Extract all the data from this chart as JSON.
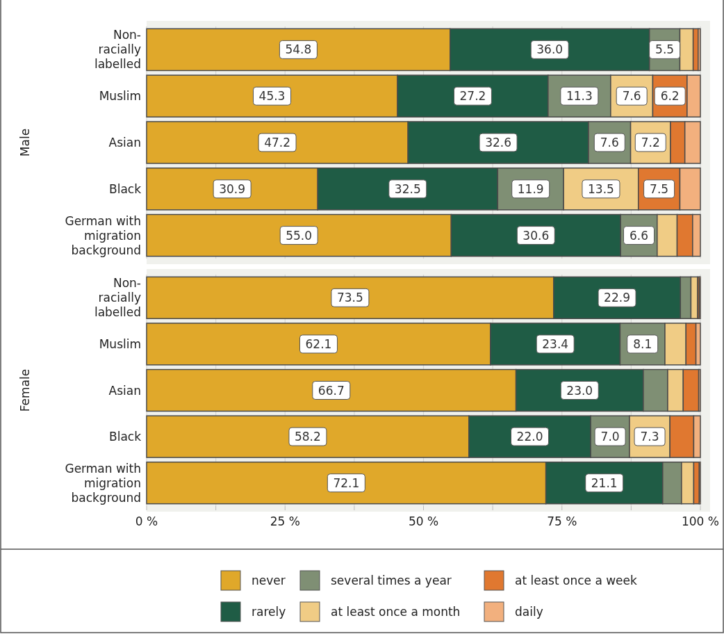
{
  "chart_data": [
    {
      "type": "bar",
      "orientation": "horizontal",
      "stacked": true,
      "ylabel": "Male",
      "categories": [
        "Non-racially labelled",
        "Muslim",
        "Asian",
        "Black",
        "German with migration background"
      ],
      "xlim": [
        0,
        100
      ],
      "xticks": [
        {
          "value": 0,
          "label": null
        },
        {
          "value": 12.5,
          "label": null
        },
        {
          "value": 25,
          "label": null
        },
        {
          "value": 37.5,
          "label": null
        },
        {
          "value": 50,
          "label": null
        },
        {
          "value": 62.5,
          "label": null
        },
        {
          "value": 75,
          "label": null
        },
        {
          "value": 87.5,
          "label": null
        },
        {
          "value": 100,
          "label": null
        }
      ],
      "tick_labels": "y",
      "grid": "x",
      "legend": "bottom",
      "series": [
        {
          "name": "never",
          "color": "#e0a82a",
          "values": [
            54.8,
            45.3,
            47.2,
            30.9,
            55.0
          ],
          "value_labels": [
            "54.8",
            "45.3",
            "47.2",
            "30.9",
            "55.0"
          ]
        },
        {
          "name": "rarely",
          "color": "#1f5c45",
          "values": [
            36.0,
            27.2,
            32.6,
            32.5,
            30.6
          ],
          "value_labels": [
            "36.0",
            "27.2",
            "32.6",
            "32.5",
            "30.6"
          ]
        },
        {
          "name": "several times a year",
          "color": "#7f8f74",
          "values": [
            5.5,
            11.3,
            7.6,
            11.9,
            6.6
          ],
          "value_labels": [
            "5.5",
            "11.3",
            "7.6",
            "11.9",
            "6.6"
          ]
        },
        {
          "name": "at least once a month",
          "color": "#f0cc85",
          "values": [
            2.4,
            7.6,
            7.2,
            13.5,
            3.6
          ],
          "value_labels": [
            null,
            "7.6",
            "7.2",
            "13.5",
            null
          ]
        },
        {
          "name": "at least once a week",
          "color": "#e07830",
          "values": [
            0.9,
            6.2,
            2.6,
            7.5,
            2.8
          ],
          "value_labels": [
            null,
            "6.2",
            null,
            "7.5",
            null
          ]
        },
        {
          "name": "daily",
          "color": "#f2b07e",
          "values": [
            0.4,
            2.4,
            2.8,
            3.7,
            1.4
          ],
          "value_labels": [
            null,
            null,
            null,
            null,
            null
          ]
        }
      ]
    },
    {
      "type": "bar",
      "orientation": "horizontal",
      "stacked": true,
      "ylabel": "Female",
      "categories": [
        "Non-racially labelled",
        "Muslim",
        "Asian",
        "Black",
        "German with migration background"
      ],
      "xlim": [
        0,
        100
      ],
      "xticks": [
        {
          "value": 0,
          "label": "0 %"
        },
        {
          "value": 12.5,
          "label": null
        },
        {
          "value": 25,
          "label": "25 %"
        },
        {
          "value": 37.5,
          "label": null
        },
        {
          "value": 50,
          "label": "50 %"
        },
        {
          "value": 62.5,
          "label": null
        },
        {
          "value": 75,
          "label": "75 %"
        },
        {
          "value": 87.5,
          "label": null
        },
        {
          "value": 100,
          "label": "100 %"
        }
      ],
      "grid": "x",
      "series": [
        {
          "color": "#e0a82a",
          "values": [
            73.5,
            62.1,
            66.7,
            58.2,
            72.1
          ],
          "value_labels": [
            "73.5",
            "62.1",
            "66.7",
            "58.2",
            "72.1"
          ]
        },
        {
          "color": "#1f5c45",
          "values": [
            22.9,
            23.4,
            23.0,
            22.0,
            21.1
          ],
          "value_labels": [
            "22.9",
            "23.4",
            "23.0",
            "22.0",
            "21.1"
          ]
        },
        {
          "color": "#7f8f74",
          "values": [
            1.9,
            8.1,
            4.4,
            7.0,
            3.4
          ],
          "value_labels": [
            null,
            "8.1",
            null,
            "7.0",
            null
          ]
        },
        {
          "color": "#f0cc85",
          "values": [
            1.2,
            3.8,
            2.8,
            7.3,
            2.2
          ],
          "value_labels": [
            null,
            null,
            null,
            "7.3",
            null
          ]
        },
        {
          "color": "#e07830",
          "values": [
            0.3,
            1.8,
            2.8,
            4.3,
            1.0
          ],
          "value_labels": [
            null,
            null,
            null,
            null,
            null
          ]
        },
        {
          "color": "#f2b07e",
          "values": [
            0.2,
            0.8,
            0.3,
            1.2,
            0.2
          ],
          "value_labels": [
            null,
            null,
            null,
            null,
            null
          ]
        }
      ]
    }
  ]
}
